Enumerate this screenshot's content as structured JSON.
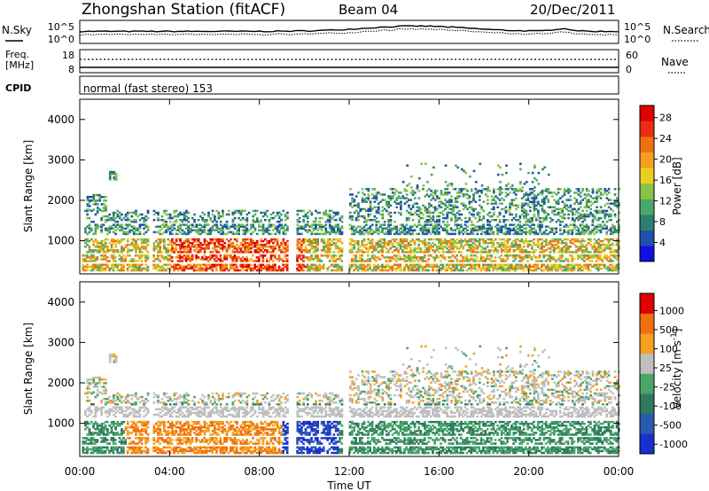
{
  "header": {
    "station": "Zhongshan Station (fitACF)",
    "beam": "Beam 04",
    "date": "20/Dec/2011"
  },
  "noise_panel": {
    "left_label": "N.Sky",
    "right_label": "N.Search",
    "ticks": [
      "10^5",
      "10^0"
    ]
  },
  "freq_panel": {
    "left_label_1": "Freq.",
    "left_label_2": "[MHz]",
    "left_ticks": [
      "18",
      "8"
    ],
    "right_label": "Nave",
    "right_ticks": [
      "60",
      "0"
    ]
  },
  "cpid": {
    "label": "CPID",
    "text": "normal (fast stereo) 153"
  },
  "chart_data": [
    {
      "type": "heatmap",
      "panel": "power",
      "ylabel": "Slant Range [km]",
      "xlabel": "",
      "ylim": [
        180,
        4500
      ],
      "xlim": [
        0,
        24
      ],
      "yticks": [
        1000,
        2000,
        3000,
        4000
      ],
      "colorbar": {
        "label": "Power [dB]",
        "ticks": [
          4,
          8,
          12,
          16,
          20,
          24,
          28
        ],
        "colors": [
          "#1010e0",
          "#1f4fb0",
          "#2f7f6f",
          "#4aa86a",
          "#8ac24a",
          "#e8d020",
          "#f5a020",
          "#f07010",
          "#e83010",
          "#e00000"
        ]
      }
    },
    {
      "type": "heatmap",
      "panel": "velocity",
      "ylabel": "Slant Range [km]",
      "xlabel": "Time UT",
      "ylim": [
        180,
        4500
      ],
      "xlim": [
        0,
        24
      ],
      "yticks": [
        1000,
        2000,
        3000,
        4000
      ],
      "xtick_labels": [
        "00:00",
        "04:00",
        "08:00",
        "12:00",
        "16:00",
        "20:00",
        "00:00"
      ],
      "colorbar": {
        "label": "Velocity [m s",
        "label_sup": "-1",
        "label_end": "]",
        "ticks": [
          "1000",
          "500",
          "100",
          "25",
          "-25",
          "-100",
          "-500",
          "-1000"
        ],
        "colors": [
          "#1a2fd0",
          "#2a5ab0",
          "#2e7a60",
          "#49a56a",
          "#bfbfbf",
          "#f5a020",
          "#f07010",
          "#e00000"
        ]
      }
    }
  ]
}
